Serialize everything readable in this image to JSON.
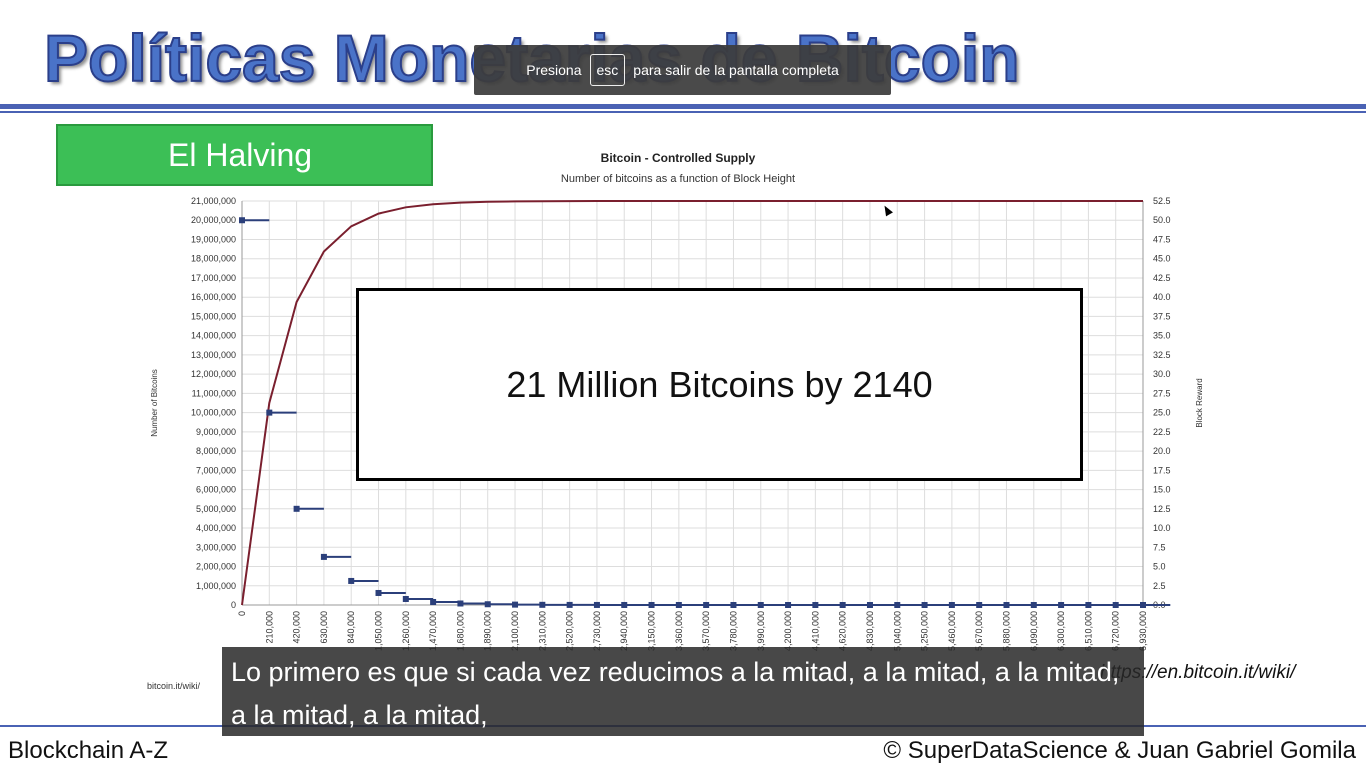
{
  "slide": {
    "title": "Políticas Monetarias de Bitcoin",
    "section_label": "El Halving",
    "overlay_text": "21 Million Bitcoins by 2140",
    "source_small": "bitcoin.it/wiki/",
    "source_link": "https://en.bitcoin.it/wiki/",
    "footer_left": "Blockchain A-Z",
    "footer_right": "© SuperDataScience & Juan Gabriel Gomila"
  },
  "fullscreen_notice": {
    "prefix": "Presiona",
    "key": "esc",
    "suffix": "para salir de la pantalla completa"
  },
  "caption": {
    "text": "Lo primero es que si cada vez reducimos a la mitad, a la mitad, a la mitad, a la mitad, a la mitad,"
  },
  "colors": {
    "title_blue": "#4a73c8",
    "rule_blue": "#4a62b4",
    "badge_green": "#3cbf56",
    "supply_line": "#7a1f2e",
    "reward_marker": "#2b3f7a"
  },
  "chart_data": {
    "type": "line",
    "title": "Bitcoin - Controlled Supply",
    "subtitle": "Number of bitcoins as a function of Block Height",
    "ylabel": "Number of Bitcoins",
    "y2label": "Block Reward",
    "ylim": [
      0,
      21000000
    ],
    "y2lim": [
      0,
      52.5
    ],
    "grid": true,
    "y_ticks": [
      "0",
      "1,000,000",
      "2,000,000",
      "3,000,000",
      "4,000,000",
      "5,000,000",
      "6,000,000",
      "7,000,000",
      "8,000,000",
      "9,000,000",
      "10,000,000",
      "11,000,000",
      "12,000,000",
      "13,000,000",
      "14,000,000",
      "15,000,000",
      "16,000,000",
      "17,000,000",
      "18,000,000",
      "19,000,000",
      "20,000,000",
      "21,000,000"
    ],
    "y2_ticks": [
      "0.0",
      "2.5",
      "5.0",
      "7.5",
      "10.0",
      "12.5",
      "15.0",
      "17.5",
      "20.0",
      "22.5",
      "25.0",
      "27.5",
      "30.0",
      "32.5",
      "35.0",
      "37.5",
      "40.0",
      "42.5",
      "45.0",
      "47.5",
      "50.0",
      "52.5"
    ],
    "x_ticks": [
      "0",
      "210,000",
      "420,000",
      "630,000",
      "840,000",
      "1,050,000",
      "1,260,000",
      "1,470,000",
      "1,680,000",
      "1,890,000",
      "2,100,000",
      "2,310,000",
      "2,520,000",
      "2,730,000",
      "2,940,000",
      "3,150,000",
      "3,360,000",
      "3,570,000",
      "3,780,000",
      "3,990,000",
      "4,200,000",
      "4,410,000",
      "4,620,000",
      "4,830,000",
      "5,040,000",
      "5,250,000",
      "5,460,000",
      "5,670,000",
      "5,880,000",
      "6,090,000",
      "6,300,000",
      "6,510,000",
      "6,720,000",
      "6,930,000"
    ],
    "series": [
      {
        "name": "Total Supply",
        "axis": "left",
        "x": [
          0,
          210000,
          420000,
          630000,
          840000,
          1050000,
          1260000,
          1470000,
          1680000,
          1890000,
          2100000,
          2310000,
          2520000,
          2730000,
          2940000,
          3150000,
          3360000,
          3570000,
          3780000,
          3990000,
          4200000,
          4410000,
          4620000,
          4830000,
          5040000,
          5250000,
          5460000,
          5670000,
          5880000,
          6090000,
          6300000,
          6510000,
          6720000,
          6930000
        ],
        "values": [
          0,
          10500000,
          15750000,
          18375000,
          19687500,
          20343750,
          20671875,
          20835938,
          20917969,
          20958984,
          20979492,
          20989746,
          20994873,
          20997437,
          20998718,
          20999359,
          20999680,
          20999840,
          20999920,
          20999960,
          20999980,
          20999990,
          20999995,
          20999998,
          20999999,
          21000000,
          21000000,
          21000000,
          21000000,
          21000000,
          21000000,
          21000000,
          21000000,
          21000000
        ]
      },
      {
        "name": "Block Reward",
        "axis": "right",
        "x": [
          0,
          210000,
          420000,
          630000,
          840000,
          1050000,
          1260000,
          1470000,
          1680000,
          1890000,
          2100000,
          2310000,
          2520000,
          2730000,
          2940000,
          3150000,
          3360000,
          3570000,
          3780000,
          3990000,
          4200000,
          4410000,
          4620000,
          4830000,
          5040000,
          5250000,
          5460000,
          5670000,
          5880000,
          6090000,
          6300000,
          6510000,
          6720000,
          6930000
        ],
        "values": [
          50,
          25,
          12.5,
          6.25,
          3.125,
          1.5625,
          0.78125,
          0.390625,
          0.195,
          0.098,
          0.049,
          0.024,
          0.012,
          0.006,
          0.003,
          0.0015,
          0.0008,
          0.0004,
          0.0002,
          0.0001,
          0,
          0,
          0,
          0,
          0,
          0,
          0,
          0,
          0,
          0,
          0,
          0,
          0,
          0
        ]
      }
    ]
  }
}
